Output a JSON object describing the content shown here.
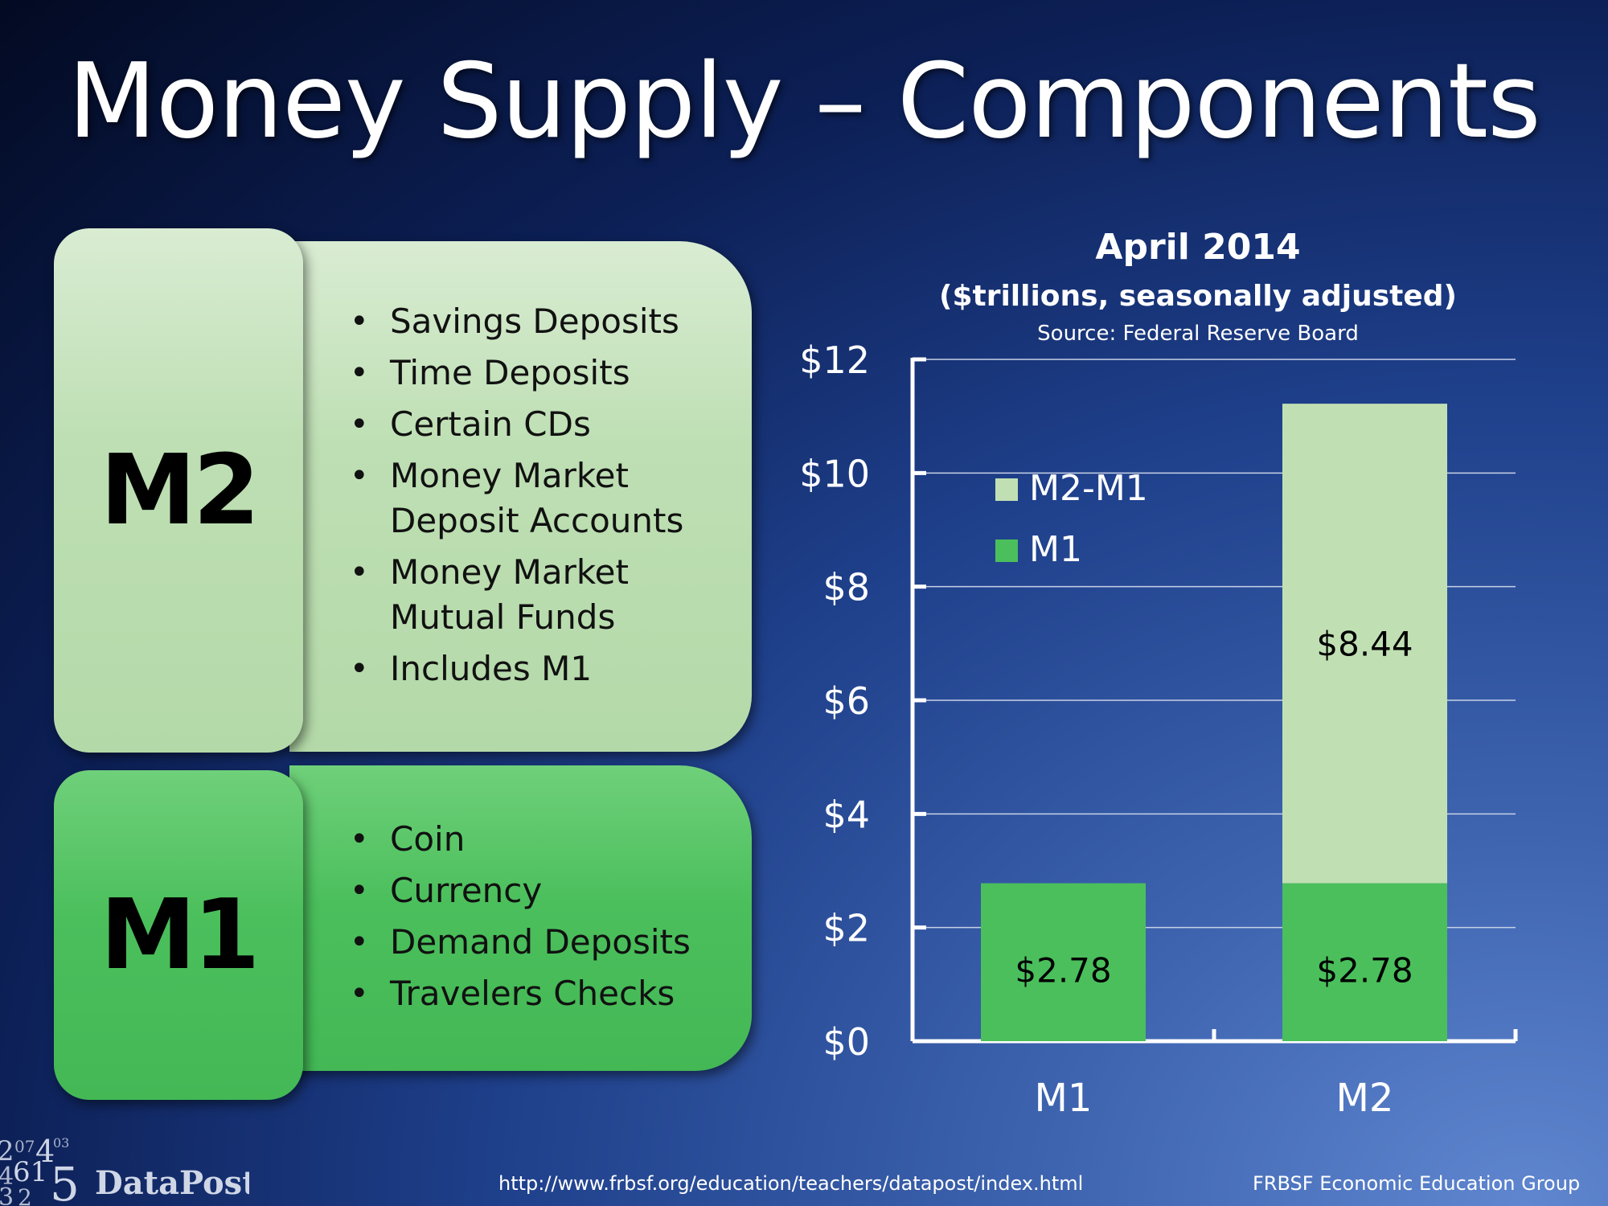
{
  "title": "Money Supply – Components",
  "m2_panel": {
    "label": "M2",
    "items": [
      "Savings Deposits",
      "Time Deposits",
      "Certain CDs",
      "Money Market\nDeposit Accounts",
      "Money Market\nMutual Funds",
      "Includes M1"
    ]
  },
  "m1_panel": {
    "label": "M1",
    "items": [
      "Coin",
      "Currency",
      "Demand Deposits",
      "Travelers Checks"
    ]
  },
  "chart_data": {
    "type": "bar",
    "stacked": true,
    "title": "April 2014",
    "subtitle": "($trillions, seasonally adjusted)",
    "source": "Source: Federal Reserve Board",
    "categories": [
      "M1",
      "M2"
    ],
    "series": [
      {
        "name": "M1",
        "values": [
          2.78,
          2.78
        ],
        "labels": [
          "$2.78",
          "$2.78"
        ],
        "color": "#4bbf5c"
      },
      {
        "name": "M2-M1",
        "values": [
          0,
          8.44
        ],
        "labels": [
          "",
          "$8.44"
        ],
        "color": "#c0e0b4"
      }
    ],
    "legend_order": [
      "M2-M1",
      "M1"
    ],
    "y_ticks": [
      "$0",
      "$2",
      "$4",
      "$6",
      "$8",
      "$10",
      "$12"
    ],
    "ylim": [
      0,
      12
    ],
    "grid": true
  },
  "footer": {
    "logo_text": "DataPost",
    "url": "http://www.frbsf.org/education/teachers/datapost/index.html",
    "credit": "FRBSF Economic Education Group"
  }
}
